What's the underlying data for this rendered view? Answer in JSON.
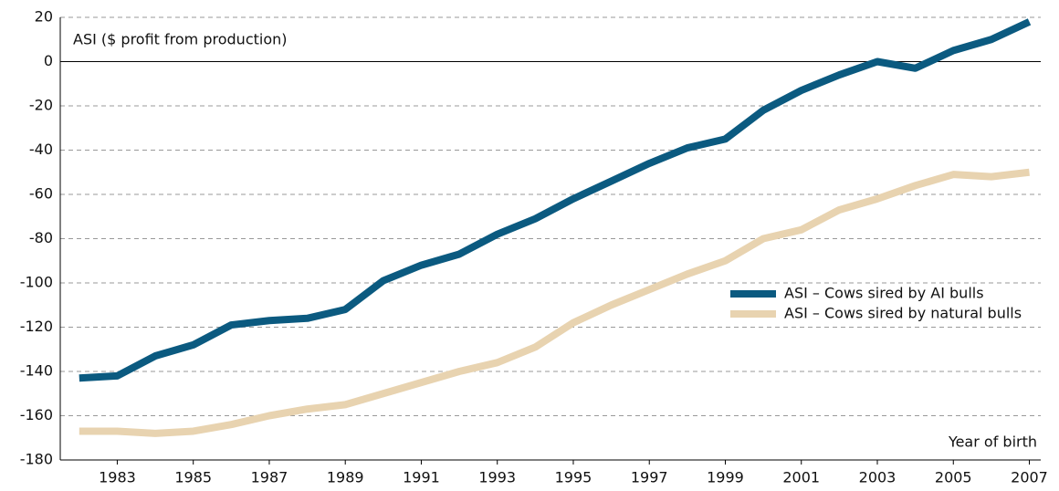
{
  "chart_data": {
    "type": "line",
    "y_label": "ASI ($ profit from production)",
    "x_label": "Year of birth",
    "x": [
      1982,
      1983,
      1984,
      1985,
      1986,
      1987,
      1988,
      1989,
      1990,
      1991,
      1992,
      1993,
      1994,
      1995,
      1996,
      1997,
      1998,
      1999,
      2000,
      2001,
      2002,
      2003,
      2004,
      2005,
      2006,
      2007
    ],
    "series": [
      {
        "name": "ASI – Cows sired by AI bulls",
        "color": "#0b5a80",
        "values": [
          -143,
          -142,
          -133,
          -128,
          -119,
          -117,
          -116,
          -112,
          -99,
          -92,
          -87,
          -78,
          -71,
          -62,
          -54,
          -46,
          -39,
          -35,
          -22,
          -13,
          -6,
          0,
          -3,
          5,
          10,
          18
        ]
      },
      {
        "name": "ASI – Cows sired by natural bulls",
        "color": "#e8d3b0",
        "values": [
          -167,
          -167,
          -168,
          -167,
          -164,
          -160,
          -157,
          -155,
          -150,
          -145,
          -140,
          -136,
          -129,
          -118,
          -110,
          -103,
          -96,
          -90,
          -80,
          -76,
          -67,
          -62,
          -56,
          -51,
          -52,
          -50
        ]
      }
    ],
    "xlim": [
      1981.5,
      2007.3
    ],
    "xticks": [
      1983,
      1985,
      1987,
      1989,
      1991,
      1993,
      1995,
      1997,
      1999,
      2001,
      2003,
      2005,
      2007
    ],
    "ylim": [
      -180,
      20
    ],
    "yticks": [
      -180,
      -160,
      -140,
      -120,
      -100,
      -80,
      -60,
      -40,
      -20,
      0,
      20
    ],
    "grid": true
  }
}
